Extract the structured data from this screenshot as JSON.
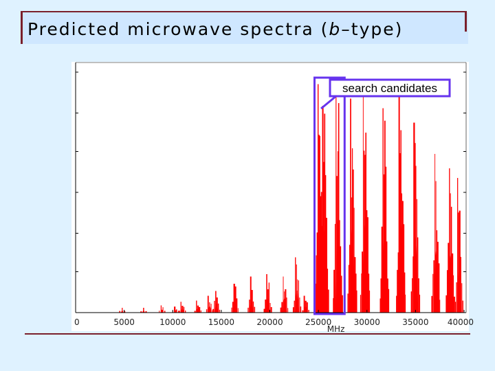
{
  "title": {
    "prefix": "Predicted microwave spectra (",
    "italic": "b",
    "suffix": "–type)"
  },
  "colors": {
    "background": "#dff2ff",
    "title_band": "#cfe7ff",
    "rule": "#7a1f2b",
    "spectrum": "#ff0000",
    "highlight": "#6633ee"
  },
  "chart_data": {
    "type": "bar",
    "xlabel": "MHz",
    "xlim": [
      0,
      40000
    ],
    "ylim": [
      0,
      1
    ],
    "grid": false,
    "x_ticks": [
      0,
      5000,
      10000,
      15000,
      20000,
      25000,
      30000,
      35000,
      40000
    ],
    "x_tick_labels": [
      "0",
      "5000",
      "10000",
      "15000",
      "20000",
      "25000",
      "30000",
      "35000",
      "40000"
    ],
    "y_ticks": [
      0.17,
      0.33,
      0.5,
      0.67,
      0.83,
      1.0
    ],
    "series": [
      {
        "clusters": [
          {
            "center": 4800,
            "peak": 0.02,
            "lines": 3
          },
          {
            "center": 7000,
            "peak": 0.02,
            "lines": 3
          },
          {
            "center": 8900,
            "peak": 0.03,
            "lines": 4
          },
          {
            "center": 10300,
            "peak": 0.025,
            "lines": 4
          },
          {
            "center": 11000,
            "peak": 0.045,
            "lines": 5
          },
          {
            "center": 12600,
            "peak": 0.05,
            "lines": 5
          },
          {
            "center": 13800,
            "peak": 0.07,
            "lines": 5
          },
          {
            "center": 14500,
            "peak": 0.09,
            "lines": 6
          },
          {
            "center": 16400,
            "peak": 0.12,
            "lines": 6
          },
          {
            "center": 18100,
            "peak": 0.15,
            "lines": 6
          },
          {
            "center": 19800,
            "peak": 0.16,
            "lines": 7
          },
          {
            "center": 21500,
            "peak": 0.15,
            "lines": 7
          },
          {
            "center": 22800,
            "peak": 0.23,
            "lines": 8
          },
          {
            "center": 23700,
            "peak": 0.07,
            "lines": 5
          },
          {
            "center": 25100,
            "peak": 0.95,
            "lines": 12
          },
          {
            "center": 25600,
            "peak": 0.86,
            "lines": 10
          },
          {
            "center": 27000,
            "peak": 0.97,
            "lines": 11
          },
          {
            "center": 28500,
            "peak": 0.89,
            "lines": 11
          },
          {
            "center": 29800,
            "peak": 0.93,
            "lines": 11
          },
          {
            "center": 31800,
            "peak": 0.85,
            "lines": 10
          },
          {
            "center": 33500,
            "peak": 0.92,
            "lines": 11
          },
          {
            "center": 35000,
            "peak": 0.79,
            "lines": 10
          },
          {
            "center": 37100,
            "peak": 0.66,
            "lines": 9
          },
          {
            "center": 38600,
            "peak": 0.6,
            "lines": 9
          },
          {
            "center": 39500,
            "peak": 0.56,
            "lines": 8
          }
        ]
      }
    ],
    "annotations": [
      {
        "text": "search candidates",
        "highlight_range": [
          24600,
          27700
        ]
      }
    ]
  }
}
